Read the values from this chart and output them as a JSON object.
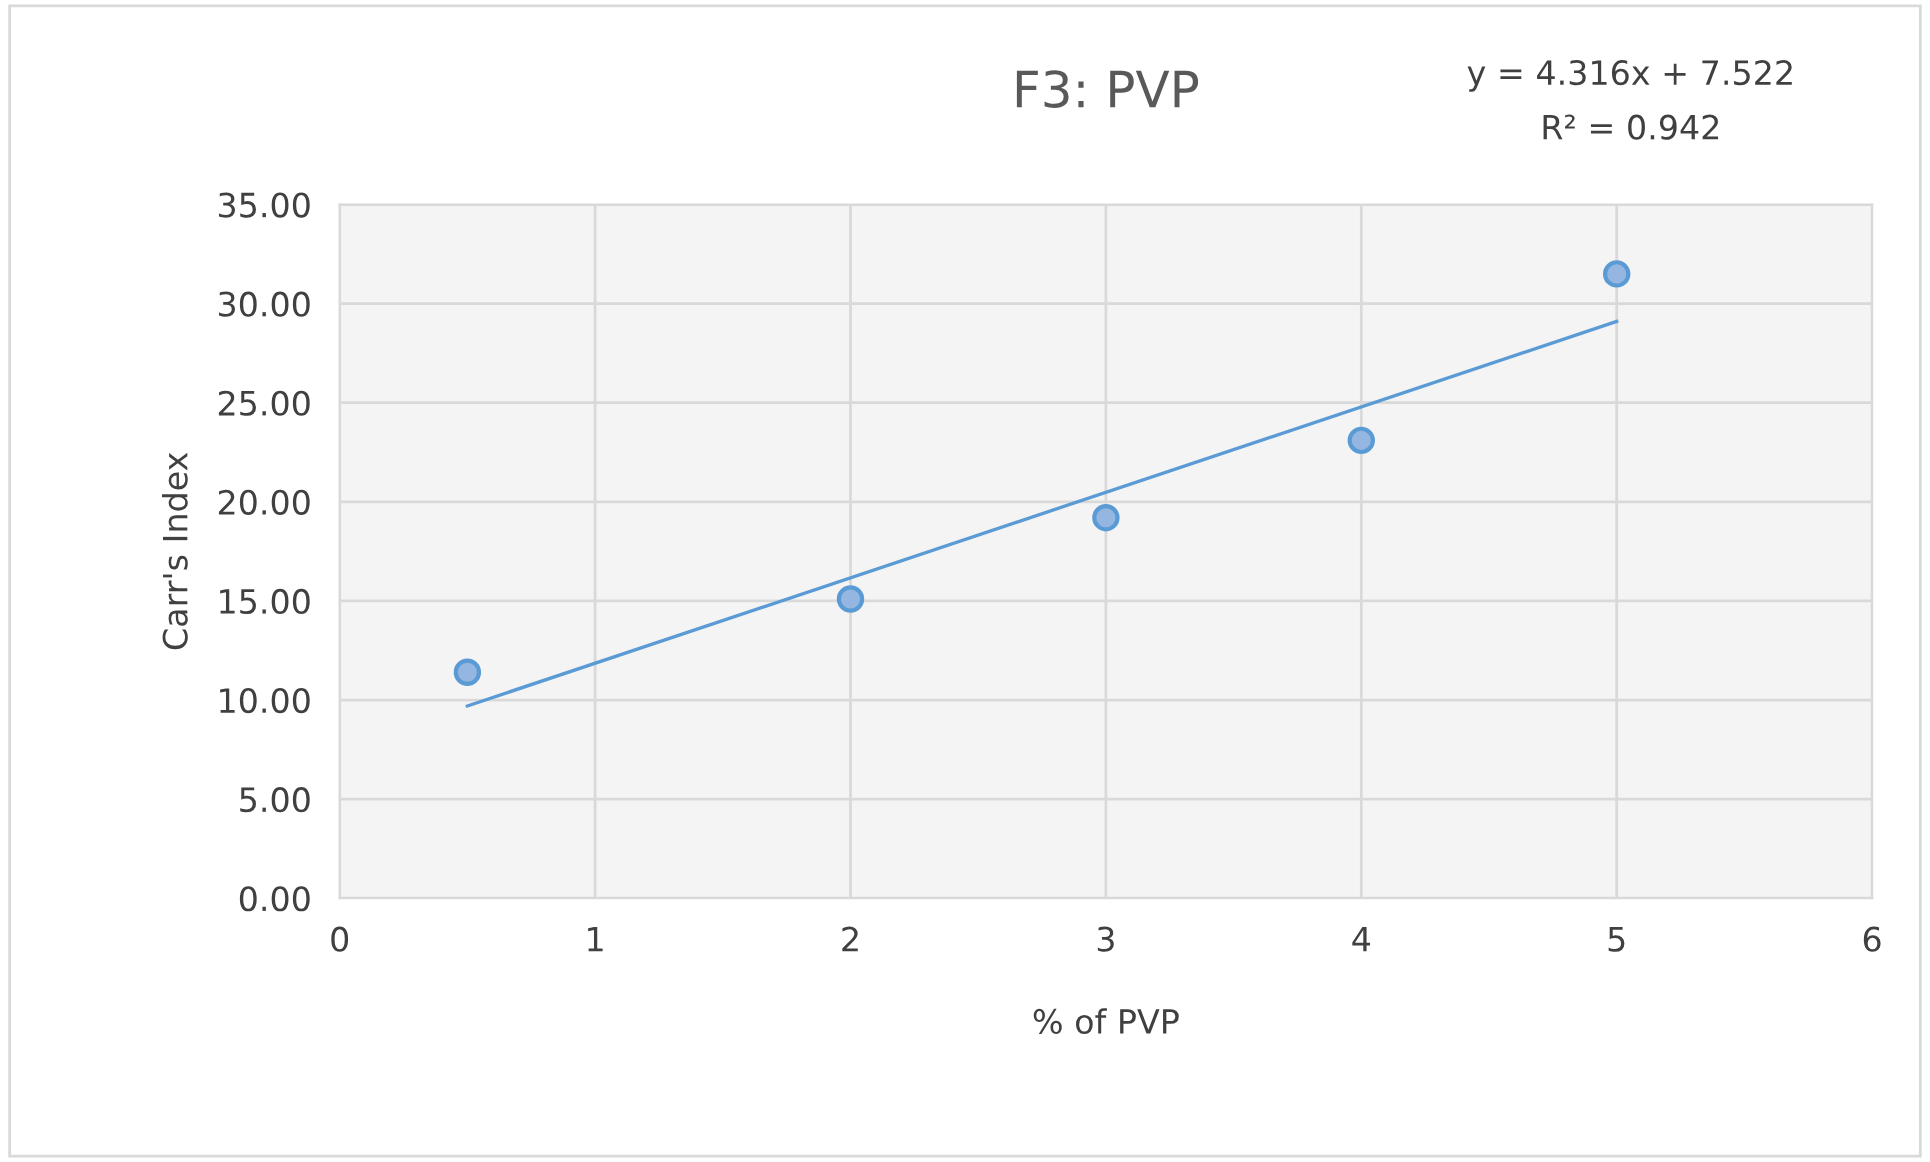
{
  "chart_data": {
    "type": "scatter",
    "title": "F3: PVP",
    "xlabel": "% of PVP",
    "ylabel": "Carr's Index",
    "xlim": [
      0,
      6
    ],
    "xticks": [
      0,
      1,
      2,
      3,
      4,
      5,
      6
    ],
    "ylim": [
      0,
      35
    ],
    "yticks": [
      {
        "value": 0,
        "label": "0.00"
      },
      {
        "value": 5,
        "label": "5.00"
      },
      {
        "value": 10,
        "label": "10.00"
      },
      {
        "value": 15,
        "label": "15.00"
      },
      {
        "value": 20,
        "label": "20.00"
      },
      {
        "value": 25,
        "label": "25.00"
      },
      {
        "value": 30,
        "label": "30.00"
      },
      {
        "value": 35,
        "label": "35.00"
      }
    ],
    "grid": true,
    "legend": false,
    "annotations": [
      "y = 4.316x + 7.522",
      "R² = 0.942"
    ],
    "series": [
      {
        "color": "#5b9bd5",
        "marker": "circle",
        "x": [
          0.5,
          2,
          3,
          4,
          5
        ],
        "values": [
          11.4,
          15.1,
          19.2,
          23.1,
          31.5
        ]
      },
      {
        "type": "line",
        "color": "#5b9bd5",
        "marker": "none",
        "line_style": "solid",
        "x": [
          0.5,
          5
        ],
        "values": [
          9.7,
          29.1
        ]
      }
    ]
  }
}
